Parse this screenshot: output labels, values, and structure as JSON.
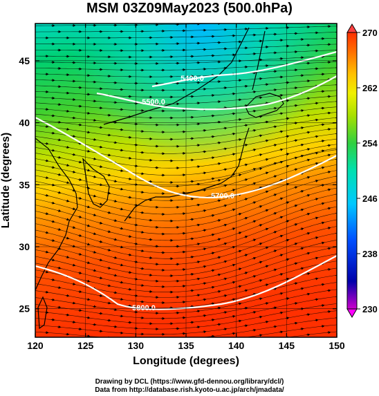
{
  "title": "MSM 03Z09May2023 (500.0hPa)",
  "x_axis": {
    "label": "Longitude (degrees)",
    "ticks": [
      "120",
      "125",
      "130",
      "135",
      "140",
      "145",
      "150"
    ]
  },
  "y_axis": {
    "label": "Latitude  (degrees)",
    "ticks": [
      "25",
      "30",
      "35",
      "40",
      "45"
    ]
  },
  "colorbar": {
    "ticks": [
      "270",
      "262",
      "254",
      "246",
      "238",
      "230"
    ],
    "range": [
      230,
      270
    ],
    "colors": [
      "#cc00cc",
      "#0000aa",
      "#0050ff",
      "#00c8ff",
      "#00e0b0",
      "#30d040",
      "#a8e000",
      "#f0f000",
      "#ffc000",
      "#ff7000",
      "#ff3000"
    ]
  },
  "contours": [
    {
      "label": "5400.0"
    },
    {
      "label": "5500.0"
    },
    {
      "label": "5700.0"
    },
    {
      "label": "5800.0"
    }
  ],
  "footer": {
    "line1": "Drawing by DCL (https://www.gfd-dennou.org/library/dcl/)",
    "line2": "Data from http://database.rish.kyoto-u.ac.jp/arch/jmadata/"
  }
}
